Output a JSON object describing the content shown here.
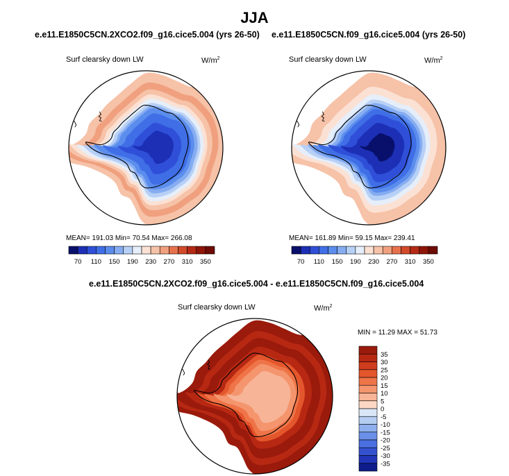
{
  "figure": {
    "title": "JJA",
    "panel_left": {
      "case": "e.e11.E1850C5CN.2XCO2.f09_g16.cice5.004 (yrs 26-50)",
      "variable": "Surf clearsky down LW",
      "units": "W/m",
      "units_exp": "2",
      "stats": "MEAN= 191.03  Min=  70.54  Max= 266.08"
    },
    "panel_right": {
      "case": "e.e11.E1850C5CN.f09_g16.cice5.004 (yrs 26-50)",
      "variable": "Surf clearsky down LW",
      "units": "W/m",
      "units_exp": "2",
      "stats": "MEAN= 161.89  Min=  59.15  Max= 239.41"
    },
    "panel_diff": {
      "case": "e.e11.E1850C5CN.2XCO2.f09_g16.cice5.004 - e.e11.E1850C5CN.f09_g16.cice5.004",
      "variable": "Surf clearsky down LW",
      "units": "W/m",
      "units_exp": "2",
      "stats": "MIN =  11.29 MAX =  51.73"
    }
  },
  "chart_data": [
    {
      "type": "heatmap",
      "projection": "south-polar stereographic",
      "title": "e.e11.E1850C5CN.2XCO2.f09_g16.cice5.004 (yrs 26-50)",
      "variable": "Surf clearsky down LW",
      "units": "W/m2",
      "mean": 191.03,
      "min": 70.54,
      "max": 266.08,
      "levels": [
        70,
        90,
        110,
        130,
        150,
        170,
        190,
        210,
        230,
        250,
        270,
        290,
        310,
        330,
        350
      ],
      "tick_labels": [
        "70",
        "110",
        "150",
        "190",
        "230",
        "270",
        "310",
        "350"
      ],
      "colors": [
        "#08106b",
        "#1c2fb5",
        "#2f4fd8",
        "#3f6ee6",
        "#5b8ded",
        "#86acf1",
        "#b7d0f6",
        "#e6eefa",
        "#fbe1d3",
        "#f6c2a8",
        "#f0a07e",
        "#e6724d",
        "#d24a2a",
        "#b42a15",
        "#8f1508",
        "#6e0b04"
      ],
      "rings_colorbar_index": [
        9,
        10,
        9,
        8,
        7,
        6,
        5,
        4,
        3,
        2,
        1
      ]
    },
    {
      "type": "heatmap",
      "projection": "south-polar stereographic",
      "title": "e.e11.E1850C5CN.f09_g16.cice5.004 (yrs 26-50)",
      "variable": "Surf clearsky down LW",
      "units": "W/m2",
      "mean": 161.89,
      "min": 59.15,
      "max": 239.41,
      "levels": [
        70,
        90,
        110,
        130,
        150,
        170,
        190,
        210,
        230,
        250,
        270,
        290,
        310,
        330,
        350
      ],
      "tick_labels": [
        "70",
        "110",
        "150",
        "190",
        "230",
        "270",
        "310",
        "350"
      ],
      "colors": [
        "#08106b",
        "#1c2fb5",
        "#2f4fd8",
        "#3f6ee6",
        "#5b8ded",
        "#86acf1",
        "#b7d0f6",
        "#e6eefa",
        "#fbe1d3",
        "#f6c2a8",
        "#f0a07e",
        "#e6724d",
        "#d24a2a",
        "#b42a15",
        "#8f1508",
        "#6e0b04"
      ],
      "rings_colorbar_index": [
        9,
        8,
        7,
        6,
        5,
        4,
        3,
        2,
        1,
        0
      ]
    },
    {
      "type": "heatmap",
      "projection": "south-polar stereographic",
      "title": "e.e11.E1850C5CN.2XCO2.f09_g16.cice5.004 - e.e11.E1850C5CN.f09_g16.cice5.004",
      "variable": "Surf clearsky down LW",
      "units": "W/m2",
      "min": 11.29,
      "max": 51.73,
      "levels": [
        -35,
        -30,
        -25,
        -20,
        -15,
        -10,
        -5,
        0,
        5,
        10,
        15,
        20,
        25,
        30,
        35
      ],
      "tick_labels": [
        "35",
        "30",
        "25",
        "20",
        "15",
        "10",
        "5",
        "0",
        "-5",
        "-10",
        "-15",
        "-20",
        "-25",
        "-30",
        "-35"
      ],
      "colors_top_to_bottom": [
        "#9a1a0c",
        "#b72813",
        "#d03d1e",
        "#e4562c",
        "#ef7448",
        "#f4956e",
        "#f7b497",
        "#fbd8c4",
        "#d9e6f8",
        "#b5cdf3",
        "#8fb0ee",
        "#6a90e8",
        "#4a6fe0",
        "#3452d0",
        "#2035b8",
        "#0d1c8a"
      ],
      "rings_colorbar_index": [
        0,
        1,
        0,
        1,
        3,
        4,
        5,
        6
      ]
    }
  ]
}
